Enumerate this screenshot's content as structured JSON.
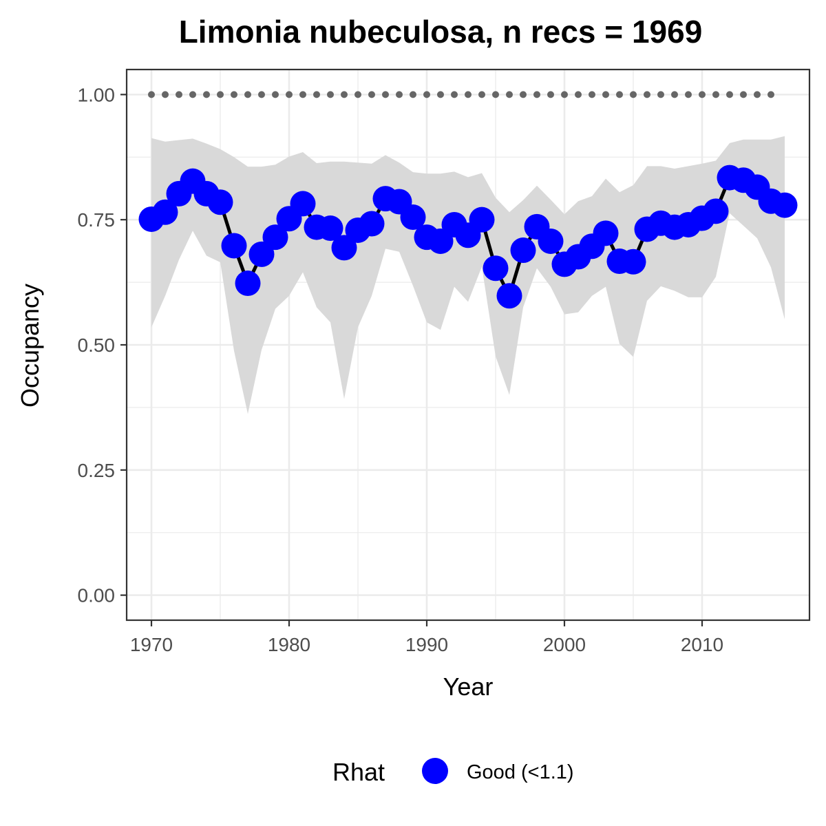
{
  "chart_data": {
    "type": "line",
    "title": "Limonia nubeculosa, n recs = 1969",
    "xlabel": "Year",
    "ylabel": "Occupancy",
    "xlim": [
      1968.2,
      2017.8
    ],
    "ylim": [
      -0.05,
      1.05
    ],
    "x_ticks": [
      1970,
      1980,
      1990,
      2000,
      2010
    ],
    "x_tick_labels": [
      "1970",
      "1980",
      "1990",
      "2000",
      "2010"
    ],
    "y_ticks": [
      0,
      0.25,
      0.5,
      0.75,
      1
    ],
    "y_tick_labels": [
      "0.00",
      "0.25",
      "0.50",
      "0.75",
      "1.00"
    ],
    "grid": true,
    "legend_position": "bottom",
    "colors": {
      "point": "#0000ff",
      "line": "#000000",
      "ribbon": "#d9d9d9",
      "reference": "#666666",
      "grid": "#ebebeb",
      "panel_border": "#333333"
    },
    "series": [
      {
        "name": "Good (<1.1)",
        "x": [
          1970,
          1971,
          1972,
          1973,
          1974,
          1975,
          1976,
          1977,
          1978,
          1979,
          1980,
          1981,
          1982,
          1983,
          1984,
          1985,
          1986,
          1987,
          1988,
          1989,
          1990,
          1991,
          1992,
          1993,
          1994,
          1995,
          1996,
          1997,
          1998,
          1999,
          2000,
          2001,
          2002,
          2003,
          2004,
          2005,
          2006,
          2007,
          2008,
          2009,
          2010,
          2011,
          2012,
          2013,
          2014,
          2015,
          2016
        ],
        "y": [
          0.751,
          0.765,
          0.802,
          0.827,
          0.802,
          0.785,
          0.698,
          0.623,
          0.681,
          0.715,
          0.752,
          0.782,
          0.735,
          0.733,
          0.694,
          0.729,
          0.742,
          0.792,
          0.786,
          0.755,
          0.715,
          0.707,
          0.74,
          0.719,
          0.75,
          0.653,
          0.598,
          0.689,
          0.736,
          0.707,
          0.661,
          0.676,
          0.697,
          0.723,
          0.667,
          0.666,
          0.731,
          0.743,
          0.735,
          0.74,
          0.753,
          0.767,
          0.834,
          0.829,
          0.815,
          0.787,
          0.779
        ],
        "lower": [
          0.535,
          0.598,
          0.67,
          0.728,
          0.678,
          0.665,
          0.488,
          0.362,
          0.49,
          0.572,
          0.598,
          0.645,
          0.575,
          0.545,
          0.392,
          0.535,
          0.598,
          0.692,
          0.686,
          0.618,
          0.545,
          0.53,
          0.616,
          0.586,
          0.656,
          0.477,
          0.4,
          0.575,
          0.653,
          0.616,
          0.561,
          0.565,
          0.598,
          0.616,
          0.502,
          0.476,
          0.588,
          0.617,
          0.608,
          0.595,
          0.595,
          0.636,
          0.763,
          0.738,
          0.713,
          0.655,
          0.551
        ],
        "upper": [
          0.913,
          0.906,
          0.909,
          0.912,
          0.902,
          0.891,
          0.875,
          0.856,
          0.856,
          0.86,
          0.876,
          0.885,
          0.863,
          0.866,
          0.866,
          0.864,
          0.862,
          0.879,
          0.864,
          0.845,
          0.842,
          0.842,
          0.846,
          0.835,
          0.843,
          0.794,
          0.765,
          0.789,
          0.818,
          0.79,
          0.761,
          0.787,
          0.797,
          0.832,
          0.805,
          0.819,
          0.857,
          0.857,
          0.852,
          0.857,
          0.862,
          0.868,
          0.903,
          0.91,
          0.91,
          0.91,
          0.917
        ]
      }
    ],
    "reference_line": {
      "y": 1.0,
      "x": [
        1970,
        1971,
        1972,
        1973,
        1974,
        1975,
        1976,
        1977,
        1978,
        1979,
        1980,
        1981,
        1982,
        1983,
        1984,
        1985,
        1986,
        1987,
        1988,
        1989,
        1990,
        1991,
        1992,
        1993,
        1994,
        1995,
        1996,
        1997,
        1998,
        1999,
        2000,
        2001,
        2002,
        2003,
        2004,
        2005,
        2006,
        2007,
        2008,
        2009,
        2010,
        2011,
        2012,
        2013,
        2014,
        2015
      ]
    },
    "legend": {
      "title": "Rhat",
      "entries": [
        "Good (<1.1)"
      ]
    }
  }
}
